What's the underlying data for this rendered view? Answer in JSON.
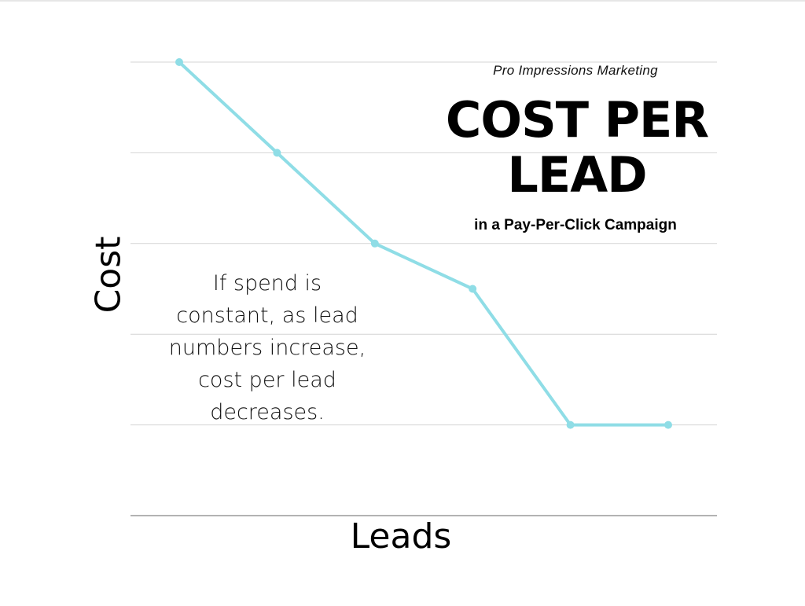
{
  "brand": "Pro Impressions Marketing",
  "chart_data": {
    "type": "line",
    "title_line1": "COST PER",
    "title_line2": "LEAD",
    "subtitle": "in a Pay-Per-Click Campaign",
    "xlabel": "Leads",
    "ylabel": "Cost",
    "annotation": "If spend is constant, as lead numbers increase, cost per lead decreases.",
    "x": [
      1,
      2,
      3,
      4,
      5,
      6
    ],
    "values": [
      5,
      4,
      3,
      2.5,
      1,
      1
    ],
    "ylim": [
      0,
      5
    ],
    "grid": true,
    "line_color": "#8fdde6",
    "grid_color": "#d4d4d4",
    "axis_color": "#9a9a9a"
  }
}
